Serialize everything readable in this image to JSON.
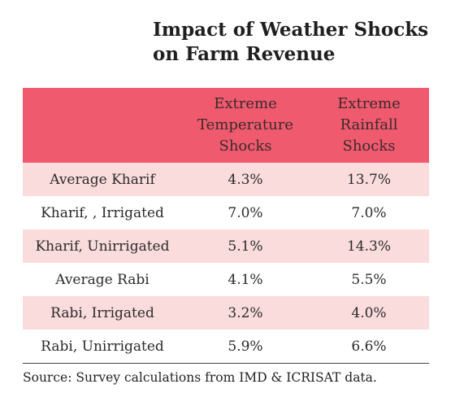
{
  "chart_data": {
    "type": "table",
    "title_line1": "Impact of Weather Shocks",
    "title_line2": "on Farm Revenue",
    "columns": [
      "",
      "Extreme Temperature Shocks",
      "Extreme Rainfall Shocks"
    ],
    "header_lines": {
      "temperature": [
        "Extreme",
        "Temperature",
        "Shocks"
      ],
      "rainfall": [
        "Extreme",
        "Rainfall",
        "Shocks"
      ]
    },
    "rows": [
      {
        "label": "Average Kharif",
        "temperature": "4.3%",
        "rainfall": "13.7%"
      },
      {
        "label": "Kharif, , Irrigated",
        "temperature": "7.0%",
        "rainfall": "7.0%"
      },
      {
        "label": "Kharif, Unirrigated",
        "temperature": "5.1%",
        "rainfall": "14.3%"
      },
      {
        "label": "Average Rabi",
        "temperature": "4.1%",
        "rainfall": "5.5%"
      },
      {
        "label": "Rabi, Irrigated",
        "temperature": "3.2%",
        "rainfall": "4.0%"
      },
      {
        "label": "Rabi, Unirrigated",
        "temperature": "5.9%",
        "rainfall": "6.6%"
      }
    ],
    "source": "Source: Survey calculations from IMD & ICRISAT data.",
    "colors": {
      "header": "#ef5a6f",
      "shaded_row": "#fbdcdc"
    }
  }
}
